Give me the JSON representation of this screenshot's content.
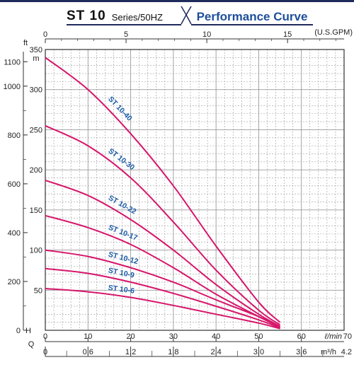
{
  "header": {
    "series": "ST 10",
    "series_sub": "Series/50HZ",
    "title": "Performance Curve"
  },
  "chart_data": {
    "type": "line",
    "title": "Performance Curve",
    "colors": {
      "curve": "#d6166b",
      "curve_label": "#1a5aa6",
      "grid": "#9a9a9a",
      "header": "#1f2a5c"
    },
    "grid": true,
    "axes": {
      "x_lpm": {
        "label": "ℓ/min",
        "range": [
          0,
          70
        ],
        "ticks": [
          "0",
          "10",
          "20",
          "30",
          "40",
          "50",
          "60",
          "70"
        ]
      },
      "x_gpm": {
        "label": "(U.S.GPM)",
        "range": [
          0,
          18.5
        ],
        "ticks": [
          "0",
          "5",
          "10",
          "15"
        ]
      },
      "x_m3h": {
        "label": "m³/h",
        "range": [
          0,
          4.2
        ],
        "ticks": [
          "0",
          "0.6",
          "1.2",
          "1.8",
          "2.4",
          "3.0",
          "3.6",
          "4.2"
        ]
      },
      "y_m": {
        "label": "m",
        "range": [
          0,
          350
        ],
        "ticks": [
          "50",
          "100",
          "150",
          "200",
          "250",
          "300",
          "350"
        ]
      },
      "y_ft": {
        "label": "ft",
        "range": [
          0,
          1150
        ],
        "ticks": [
          "0",
          "200",
          "400",
          "600",
          "800",
          "1000",
          "1100"
        ]
      },
      "q_label": "Q",
      "h_label": "H"
    },
    "series": [
      {
        "name": "ST 10-40",
        "x": [
          0,
          10,
          20,
          30,
          40,
          50,
          55
        ],
        "y": [
          340,
          300,
          245,
          180,
          105,
          35,
          10
        ]
      },
      {
        "name": "ST 10-30",
        "x": [
          0,
          10,
          20,
          30,
          40,
          50,
          55
        ],
        "y": [
          255,
          230,
          190,
          135,
          75,
          25,
          7
        ]
      },
      {
        "name": "ST 10-22",
        "x": [
          0,
          10,
          20,
          30,
          40,
          50,
          55
        ],
        "y": [
          187,
          168,
          138,
          100,
          57,
          20,
          5
        ]
      },
      {
        "name": "ST 10-17",
        "x": [
          0,
          10,
          20,
          30,
          40,
          50,
          55
        ],
        "y": [
          143,
          128,
          107,
          78,
          45,
          17,
          4
        ]
      },
      {
        "name": "ST 10-12",
        "x": [
          0,
          10,
          20,
          30,
          40,
          50,
          55
        ],
        "y": [
          100,
          92,
          78,
          60,
          38,
          17,
          4
        ]
      },
      {
        "name": "ST 10-9",
        "x": [
          0,
          10,
          20,
          30,
          40,
          50,
          55
        ],
        "y": [
          77,
          71,
          60,
          46,
          30,
          13,
          3
        ]
      },
      {
        "name": "ST 10-6",
        "x": [
          0,
          10,
          20,
          30,
          40,
          50,
          55
        ],
        "y": [
          52,
          48,
          41,
          31,
          20,
          9,
          2
        ]
      }
    ]
  }
}
